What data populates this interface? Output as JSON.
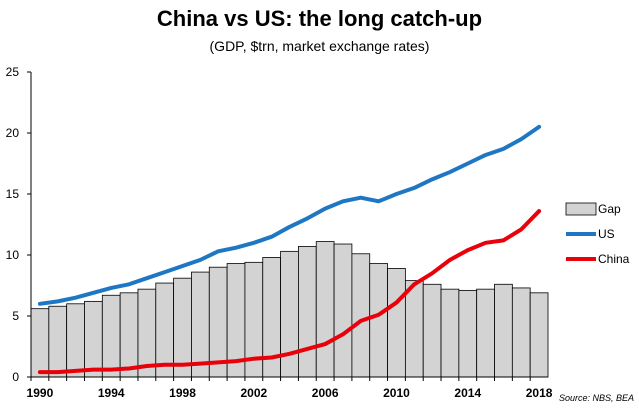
{
  "chart_data": {
    "type": "bar+line",
    "title": "China vs US: the long catch-up",
    "subtitle": "(GDP, $trn, market exchange rates)",
    "source": "Source: NBS, BEA",
    "ylim": [
      0,
      25
    ],
    "yticks": [
      0,
      5,
      10,
      15,
      20,
      25
    ],
    "xticks": [
      1990,
      1994,
      1998,
      2002,
      2006,
      2010,
      2014,
      2018
    ],
    "x": [
      1990,
      1991,
      1992,
      1993,
      1994,
      1995,
      1996,
      1997,
      1998,
      1999,
      2000,
      2001,
      2002,
      2003,
      2004,
      2005,
      2006,
      2007,
      2008,
      2009,
      2010,
      2011,
      2012,
      2013,
      2014,
      2015,
      2016,
      2017,
      2018
    ],
    "grid": false,
    "legend_position": "right",
    "series": [
      {
        "name": "Gap",
        "kind": "bar",
        "color": "#d3d3d3",
        "edge": "#000000",
        "values": [
          5.6,
          5.8,
          6.0,
          6.2,
          6.7,
          6.9,
          7.2,
          7.7,
          8.1,
          8.6,
          9.0,
          9.3,
          9.4,
          9.8,
          10.3,
          10.7,
          11.1,
          10.9,
          10.1,
          9.3,
          8.9,
          7.9,
          7.6,
          7.2,
          7.1,
          7.2,
          7.6,
          7.3,
          6.9
        ]
      },
      {
        "name": "US",
        "kind": "line",
        "color": "#1f77c4",
        "values": [
          6.0,
          6.2,
          6.5,
          6.9,
          7.3,
          7.6,
          8.1,
          8.6,
          9.1,
          9.6,
          10.3,
          10.6,
          11.0,
          11.5,
          12.3,
          13.0,
          13.8,
          14.4,
          14.7,
          14.4,
          15.0,
          15.5,
          16.2,
          16.8,
          17.5,
          18.2,
          18.7,
          19.5,
          20.5
        ]
      },
      {
        "name": "China",
        "kind": "line",
        "color": "#e8000b",
        "values": [
          0.4,
          0.4,
          0.5,
          0.6,
          0.6,
          0.7,
          0.9,
          1.0,
          1.0,
          1.1,
          1.2,
          1.3,
          1.5,
          1.6,
          1.9,
          2.3,
          2.7,
          3.5,
          4.6,
          5.1,
          6.1,
          7.6,
          8.5,
          9.6,
          10.4,
          11.0,
          11.2,
          12.1,
          13.6
        ]
      }
    ]
  }
}
